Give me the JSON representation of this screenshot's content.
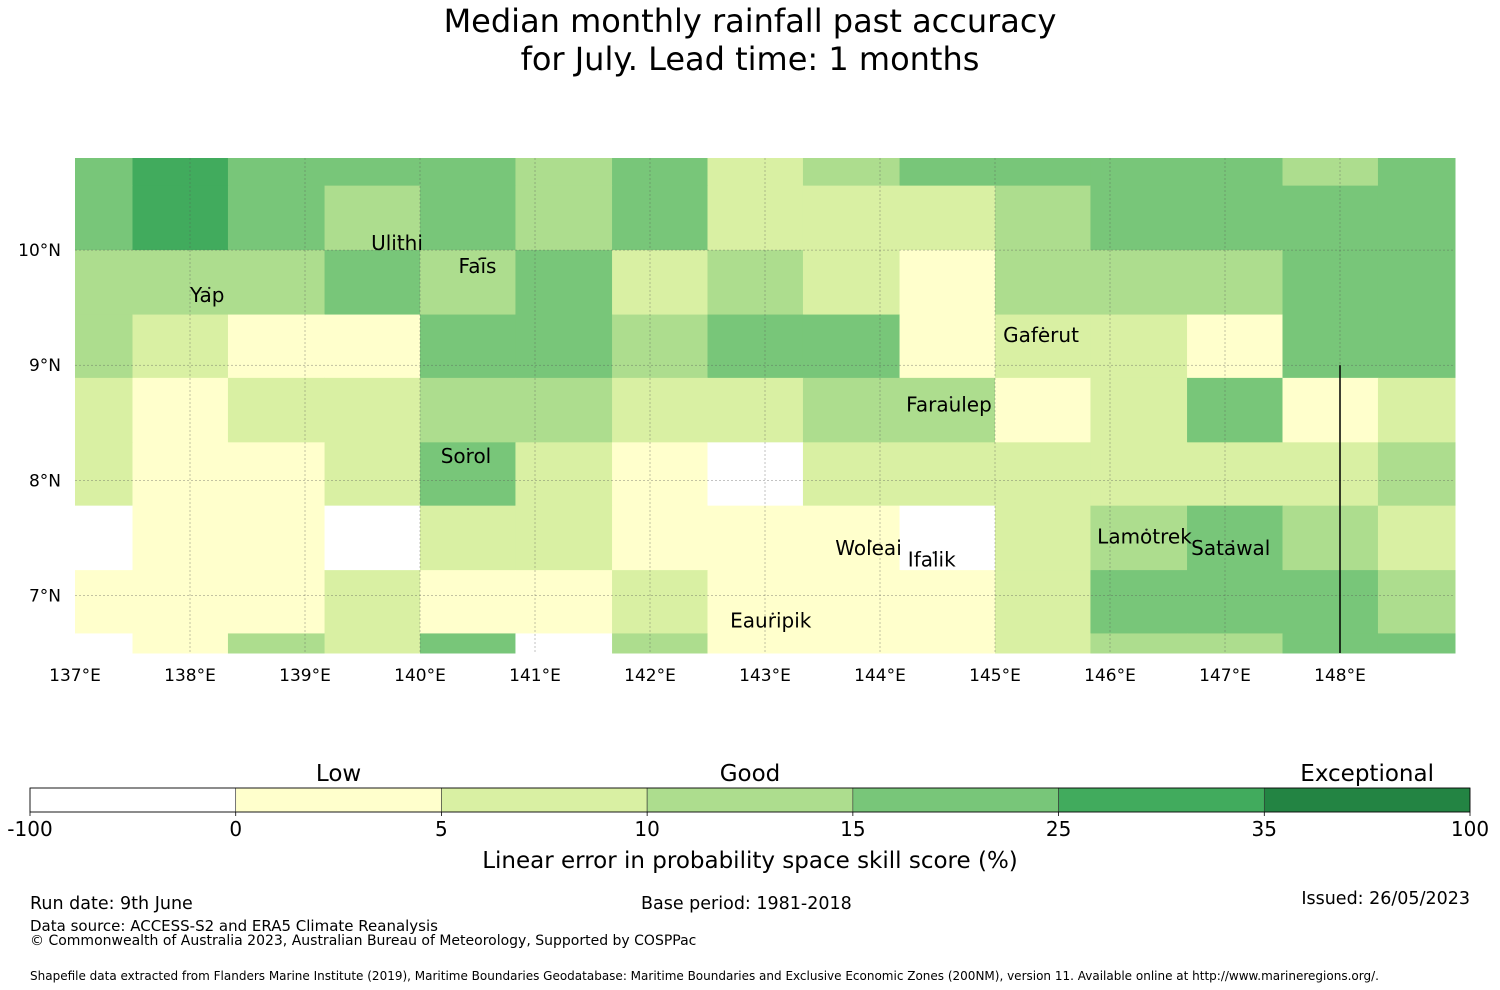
{
  "title": {
    "line1": "Median monthly rainfall past accuracy",
    "line2": "for July. Lead time: 1 months"
  },
  "map": {
    "lat_range": [
      6.5,
      10.8
    ],
    "lon_range": [
      137.0,
      149.0
    ],
    "lat_ticks": [
      {
        "value": 10,
        "label": "10°N"
      },
      {
        "value": 9,
        "label": "9°N"
      },
      {
        "value": 8,
        "label": "8°N"
      },
      {
        "value": 7,
        "label": "7°N"
      }
    ],
    "lon_ticks": [
      {
        "value": 137,
        "label": "137°E"
      },
      {
        "value": 138,
        "label": "138°E"
      },
      {
        "value": 139,
        "label": "139°E"
      },
      {
        "value": 140,
        "label": "140°E"
      },
      {
        "value": 141,
        "label": "141°E"
      },
      {
        "value": 142,
        "label": "142°E"
      },
      {
        "value": 143,
        "label": "143°E"
      },
      {
        "value": 144,
        "label": "144°E"
      },
      {
        "value": 145,
        "label": "145°E"
      },
      {
        "value": 146,
        "label": "146°E"
      },
      {
        "value": 147,
        "label": "147°E"
      },
      {
        "value": 148,
        "label": "148°E"
      }
    ],
    "lon_edges": [
      137.0,
      137.5,
      138.33,
      139.17,
      140.0,
      140.83,
      141.67,
      142.5,
      143.33,
      144.17,
      145.0,
      145.83,
      146.67,
      147.5,
      148.33,
      149.0
    ],
    "lat_edges": [
      10.8,
      10.56,
      10.0,
      9.44,
      8.89,
      8.33,
      7.78,
      7.22,
      6.67,
      6.5
    ],
    "grid_classes": [
      [
        4,
        5,
        4,
        4,
        4,
        3,
        4,
        2,
        3,
        4,
        4,
        4,
        4,
        3,
        4
      ],
      [
        4,
        5,
        4,
        3,
        4,
        3,
        4,
        2,
        2,
        2,
        3,
        4,
        4,
        4,
        4
      ],
      [
        3,
        3,
        3,
        4,
        3,
        4,
        2,
        3,
        2,
        1,
        3,
        3,
        3,
        4,
        4
      ],
      [
        3,
        2,
        1,
        1,
        4,
        4,
        3,
        4,
        4,
        1,
        2,
        2,
        1,
        4,
        4
      ],
      [
        2,
        1,
        2,
        2,
        3,
        3,
        2,
        2,
        3,
        3,
        1,
        2,
        4,
        1,
        2
      ],
      [
        2,
        1,
        1,
        2,
        4,
        2,
        1,
        0,
        2,
        2,
        2,
        2,
        2,
        2,
        3
      ],
      [
        0,
        1,
        1,
        0,
        2,
        2,
        1,
        1,
        1,
        0,
        2,
        3,
        4,
        3,
        2
      ],
      [
        1,
        1,
        1,
        2,
        1,
        1,
        2,
        1,
        1,
        1,
        2,
        4,
        4,
        4,
        3
      ],
      [
        0,
        1,
        3,
        2,
        4,
        0,
        3,
        1,
        1,
        1,
        2,
        3,
        3,
        4,
        4
      ]
    ],
    "islands": [
      {
        "name": "Ulithi",
        "lon": 139.8,
        "lat": 10.0
      },
      {
        "name": "Yap",
        "lon": 138.15,
        "lat": 9.55
      },
      {
        "name": "Faīs",
        "lon": 140.5,
        "lat": 9.8
      },
      {
        "name": "Gaferut",
        "lon": 145.4,
        "lat": 9.2
      },
      {
        "name": "Faraulep",
        "lon": 144.6,
        "lat": 8.6
      },
      {
        "name": "Sorol",
        "lon": 140.4,
        "lat": 8.15
      },
      {
        "name": "Woleai",
        "lon": 143.9,
        "lat": 7.35
      },
      {
        "name": "Ifalik",
        "lon": 144.45,
        "lat": 7.25
      },
      {
        "name": "Lamotrek",
        "lon": 146.3,
        "lat": 7.45
      },
      {
        "name": "Satawal",
        "lon": 147.05,
        "lat": 7.35
      },
      {
        "name": "Eauripik",
        "lon": 143.05,
        "lat": 6.72
      }
    ],
    "boundary_line_lon": 148.0,
    "boundary_line_lat_range": [
      6.5,
      9.0
    ]
  },
  "colors": {
    "classes": [
      "#ffffff",
      "#ffffcc",
      "#d9f0a3",
      "#addd8e",
      "#78c679",
      "#41ab5d",
      "#238443"
    ],
    "grid_line": "#555555",
    "boundary": "#000000"
  },
  "legend": {
    "categories": [
      {
        "label": "Low",
        "under_class": 1
      },
      {
        "label": "Good",
        "under_class": 3
      },
      {
        "label": "Exceptional",
        "under_class": 6
      }
    ],
    "tick_labels": [
      "-100",
      "0",
      "5",
      "10",
      "15",
      "25",
      "35",
      "100"
    ],
    "axis_label": "Linear error in probability space skill score (%)"
  },
  "footer": {
    "run_date": "Run date: 9th June",
    "base_period": "Base period: 1981-2018",
    "issued": "Issued: 26/05/2023",
    "data_source": "Data source: ACCESS-S2 and ERA5 Climate Reanalysis",
    "copyright": "© Commonwealth of Australia 2023, Australian Bureau of Meteorology, Supported by COSPPac",
    "shapefile": "Shapefile data extracted from Flanders Marine Institute (2019), Maritime Boundaries Geodatabase: Maritime Boundaries and Exclusive Economic Zones (200NM), version 11. Available online at http://www.marineregions.org/."
  }
}
